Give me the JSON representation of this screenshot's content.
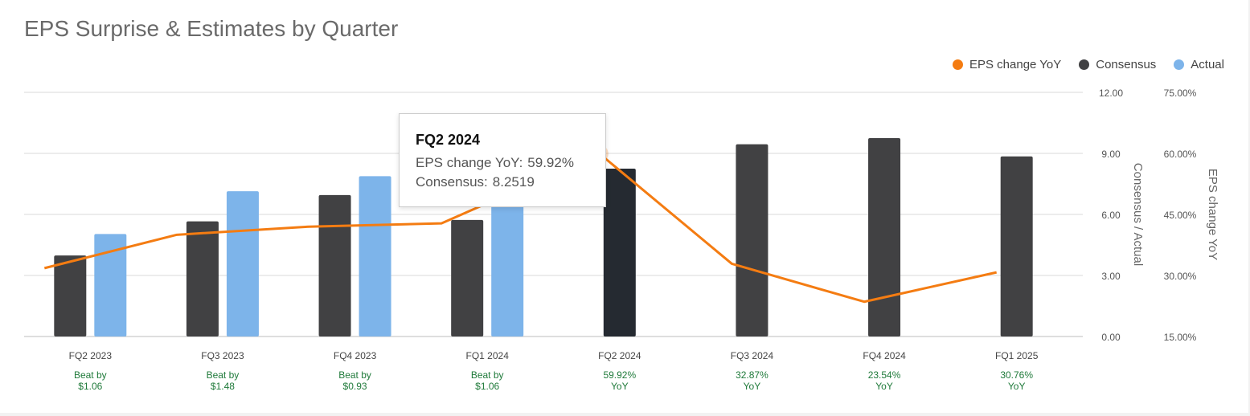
{
  "page": {
    "title": "EPS Surprise & Estimates by Quarter"
  },
  "legend": [
    {
      "label": "EPS change YoY",
      "color": "#f47c12"
    },
    {
      "label": "Consensus",
      "color": "#414143"
    },
    {
      "label": "Actual",
      "color": "#7db4ea"
    }
  ],
  "tooltip": {
    "title": "FQ2 2024",
    "rows": [
      {
        "label": "EPS change YoY:",
        "value": "59.92%"
      },
      {
        "label": "Consensus:",
        "value": "8.2519"
      }
    ]
  },
  "chart_data": {
    "type": "bar",
    "title": "EPS Surprise & Estimates by Quarter",
    "categories": [
      "FQ2 2023",
      "FQ3 2023",
      "FQ4 2023",
      "FQ1 2024",
      "FQ2 2024",
      "FQ3 2024",
      "FQ4 2024",
      "FQ1 2025"
    ],
    "series": [
      {
        "name": "Consensus",
        "type": "bar",
        "axis": "left",
        "color": "#414143",
        "values": [
          3.98,
          5.66,
          6.95,
          5.73,
          8.2519,
          9.45,
          9.75,
          8.85
        ]
      },
      {
        "name": "Actual",
        "type": "bar",
        "axis": "left",
        "color": "#7db4ea",
        "values": [
          5.04,
          7.14,
          7.88,
          6.79,
          null,
          null,
          null,
          null
        ]
      },
      {
        "name": "EPS change YoY",
        "type": "line",
        "axis": "right",
        "color": "#f47c12",
        "values": [
          31.8,
          40.0,
          42.0,
          42.8,
          59.92,
          32.87,
          23.54,
          30.76
        ]
      }
    ],
    "highlight_index": 4,
    "highlight_color": "#252a31",
    "left_axis": {
      "label": "Consensus / Actual",
      "ylim": [
        0,
        12
      ],
      "ticks": [
        "0.00",
        "3.00",
        "6.00",
        "9.00",
        "12.00"
      ],
      "tick_values": [
        0,
        3,
        6,
        9,
        12
      ]
    },
    "right_axis": {
      "label": "EPS change YoY",
      "ylim": [
        15,
        75
      ],
      "ticks": [
        "15.00%",
        "30.00%",
        "45.00%",
        "60.00%",
        "75.00%"
      ]
    },
    "bottom_labels": [
      {
        "line1": "Beat by",
        "line2": "$1.06"
      },
      {
        "line1": "Beat by",
        "line2": "$1.48"
      },
      {
        "line1": "Beat by",
        "line2": "$0.93"
      },
      {
        "line1": "Beat by",
        "line2": "$1.06"
      },
      {
        "line1": "59.92%",
        "line2": "YoY"
      },
      {
        "line1": "32.87%",
        "line2": "YoY"
      },
      {
        "line1": "23.54%",
        "line2": "YoY"
      },
      {
        "line1": "30.76%",
        "line2": "YoY"
      }
    ],
    "bottom_label_color": "#1f7a3a",
    "grid": true,
    "legend_position": "top-right"
  }
}
